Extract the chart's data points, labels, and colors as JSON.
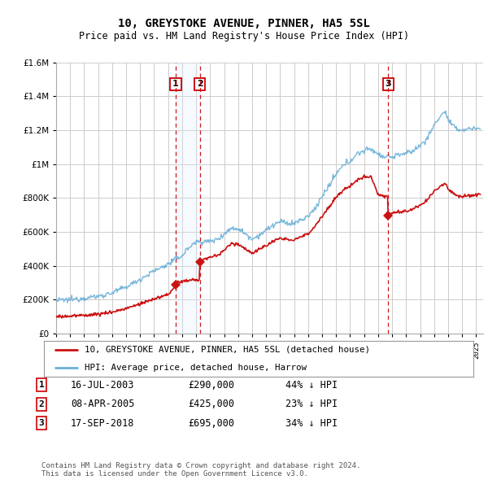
{
  "title": "10, GREYSTOKE AVENUE, PINNER, HA5 5SL",
  "subtitle": "Price paid vs. HM Land Registry's House Price Index (HPI)",
  "ylim": [
    0,
    1600000
  ],
  "yticks": [
    0,
    200000,
    400000,
    600000,
    800000,
    1000000,
    1200000,
    1400000,
    1600000
  ],
  "hpi_color": "#6ab0d8",
  "price_color": "#cc1111",
  "vline_color": "#cc0000",
  "shade_color": "#ddeeff",
  "sale_points": [
    {
      "date_num": 2003.54,
      "price": 290000,
      "label": "1"
    },
    {
      "date_num": 2005.27,
      "price": 425000,
      "label": "2"
    },
    {
      "date_num": 2018.71,
      "price": 695000,
      "label": "3"
    }
  ],
  "vline_dates": [
    2003.54,
    2005.27,
    2018.71
  ],
  "legend_house": "10, GREYSTOKE AVENUE, PINNER, HA5 5SL (detached house)",
  "legend_hpi": "HPI: Average price, detached house, Harrow",
  "table_rows": [
    {
      "num": "1",
      "date": "16-JUL-2003",
      "price": "£290,000",
      "hpi": "44% ↓ HPI"
    },
    {
      "num": "2",
      "date": "08-APR-2005",
      "price": "£425,000",
      "hpi": "23% ↓ HPI"
    },
    {
      "num": "3",
      "date": "17-SEP-2018",
      "price": "£695,000",
      "hpi": "34% ↓ HPI"
    }
  ],
  "footer": "Contains HM Land Registry data © Crown copyright and database right 2024.\nThis data is licensed under the Open Government Licence v3.0.",
  "xmin": 1995,
  "xmax": 2025.5,
  "background_color": "#ffffff",
  "grid_color": "#cccccc"
}
